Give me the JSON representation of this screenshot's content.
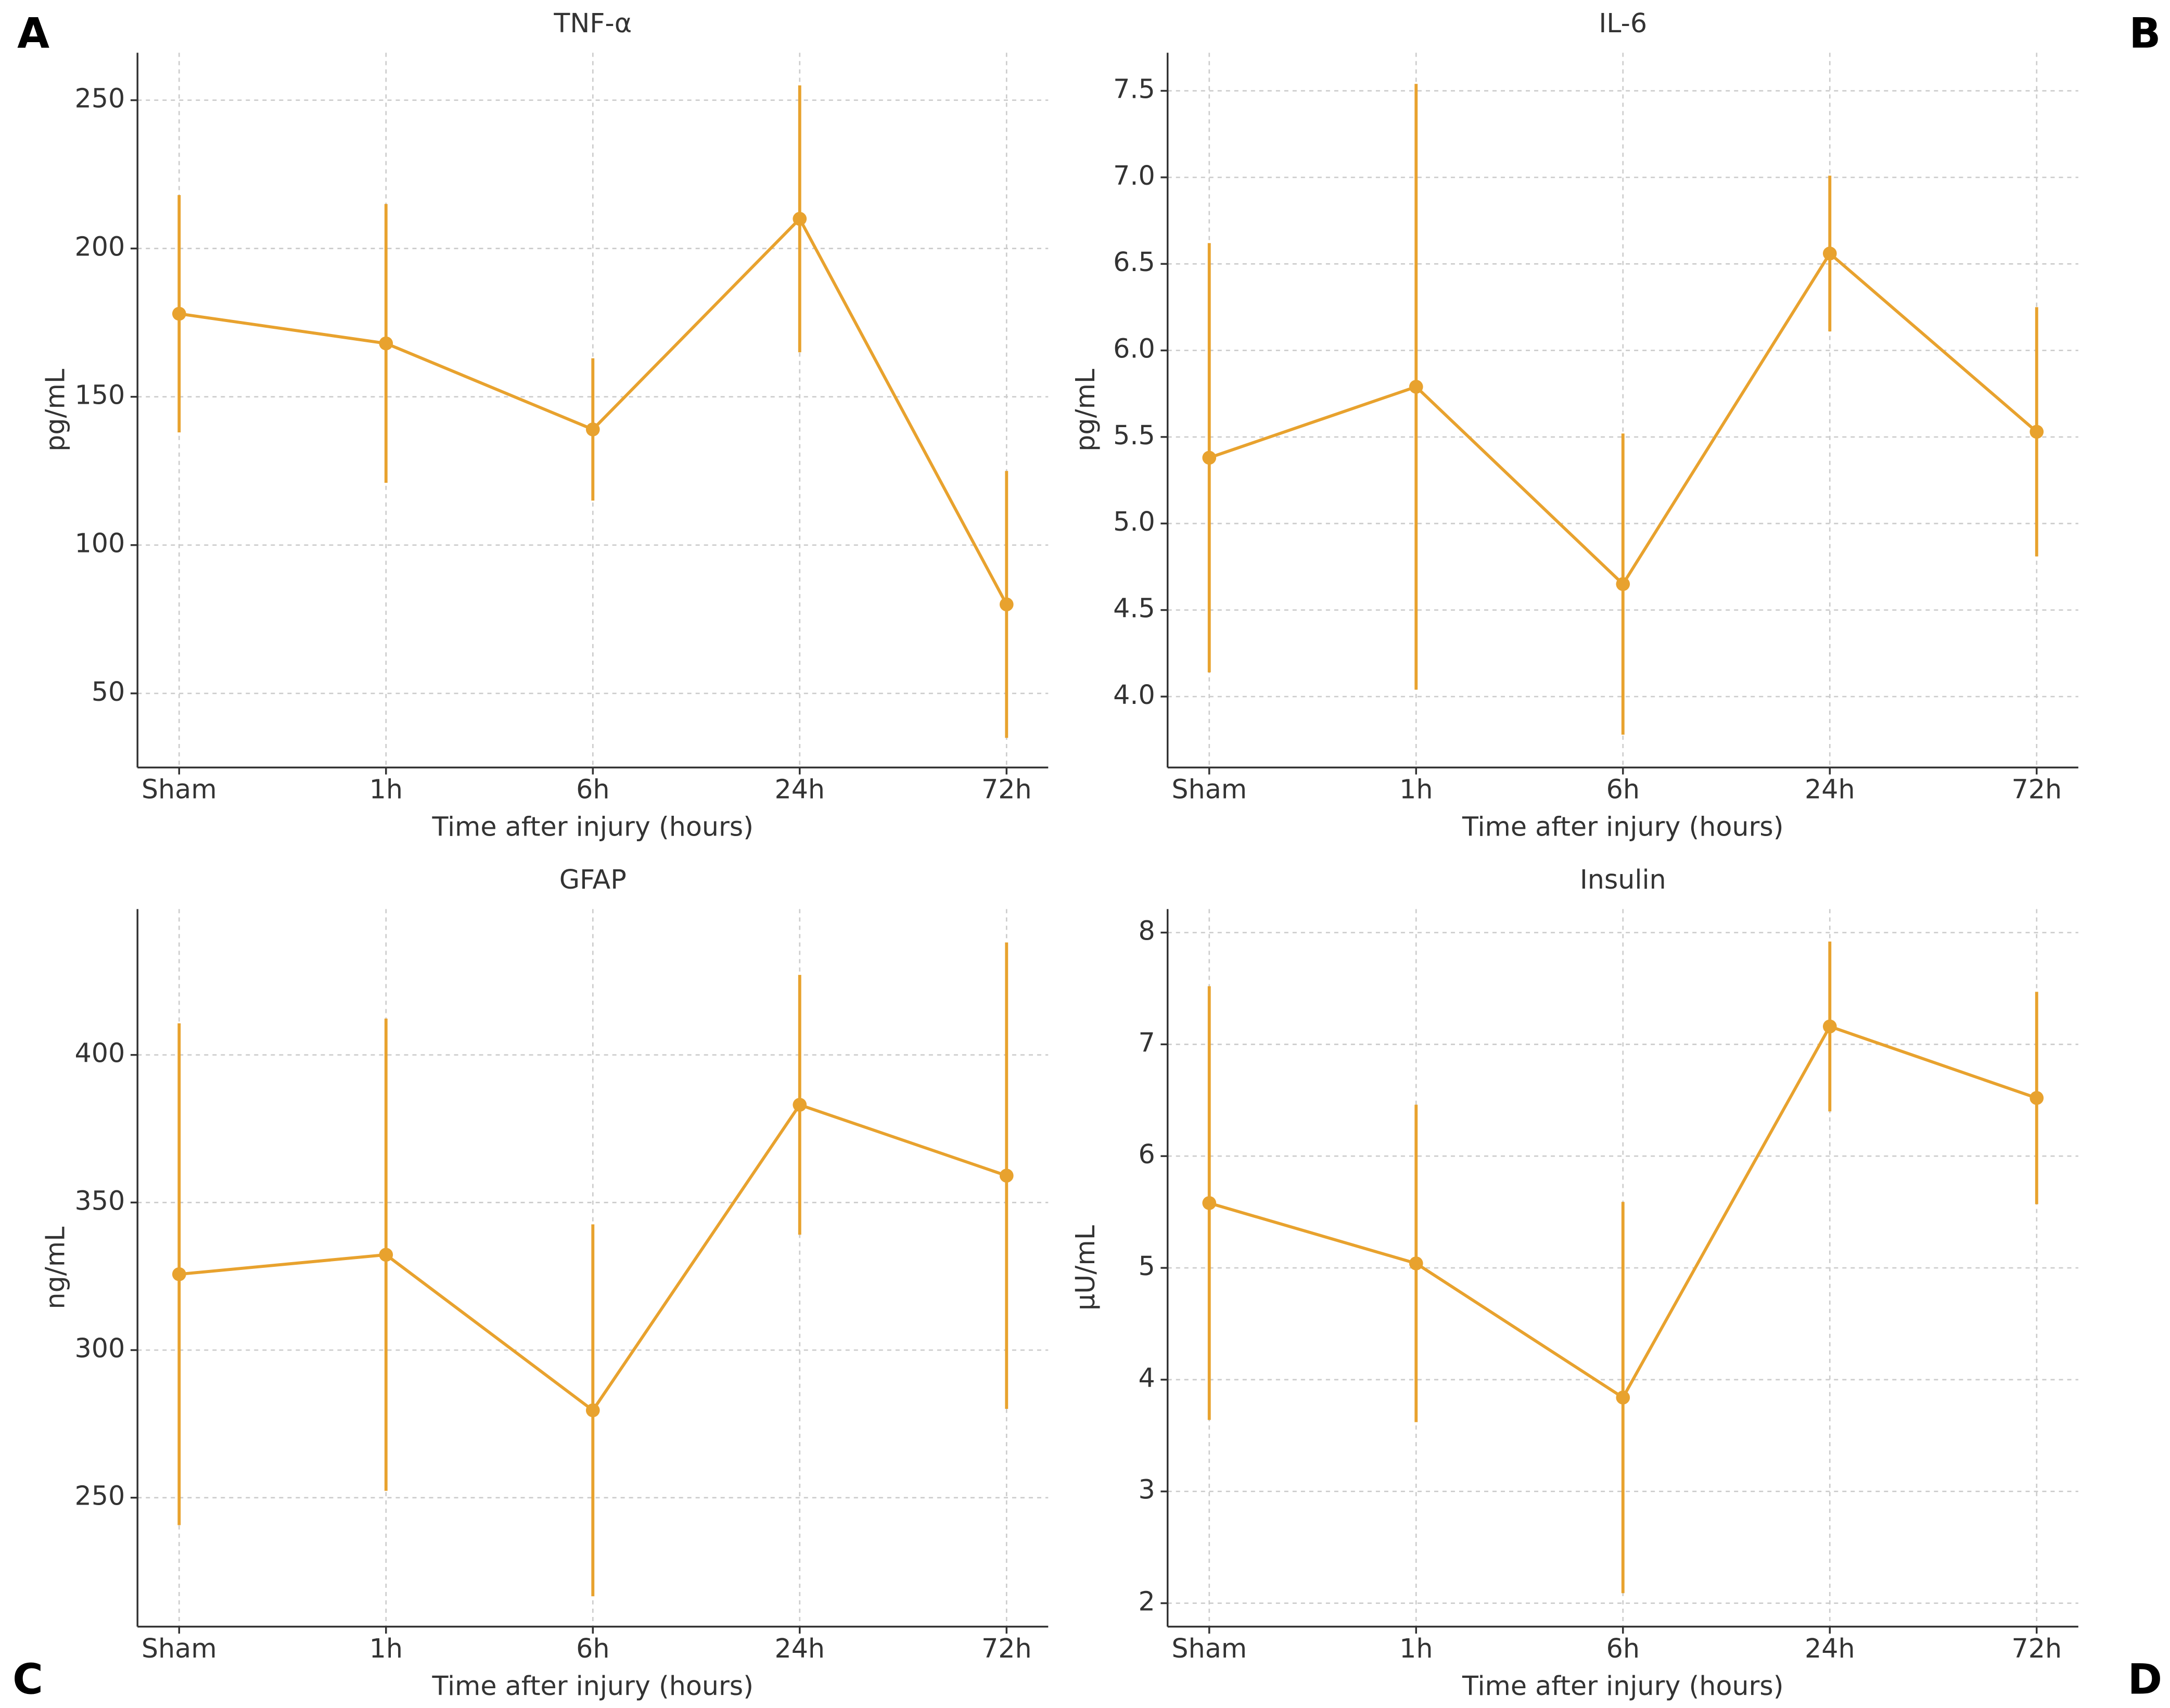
{
  "chart_data": [
    {
      "type": "line",
      "panel": "A",
      "title": "TNF-α",
      "xlabel": "Time after injury (hours)",
      "ylabel": "pg/mL",
      "categories": [
        "Sham",
        "1h",
        "6h",
        "24h",
        "72h"
      ],
      "values": [
        178,
        168,
        139,
        210,
        80
      ],
      "errors": [
        40,
        47,
        24,
        45,
        45
      ],
      "color": "#e8a22e",
      "ylim": [
        25,
        266
      ],
      "yticks": [
        50,
        100,
        150,
        200,
        250
      ],
      "grid": true
    },
    {
      "type": "line",
      "panel": "B",
      "title": "IL-6",
      "xlabel": "Time after injury (hours)",
      "ylabel": "pg/mL",
      "categories": [
        "Sham",
        "1h",
        "6h",
        "24h",
        "72h"
      ],
      "values": [
        5.38,
        5.79,
        4.65,
        6.56,
        5.53
      ],
      "errors": [
        1.24,
        1.75,
        0.87,
        0.45,
        0.72
      ],
      "color": "#e8a22e",
      "ylim": [
        3.59,
        7.72
      ],
      "yticks": [
        {
          "value": 4,
          "label": "4.0"
        },
        4.5,
        {
          "value": 5,
          "label": "5.0"
        },
        5.5,
        {
          "value": 6,
          "label": "6.0"
        },
        6.5,
        {
          "value": 7,
          "label": "7.0"
        },
        7.5
      ],
      "grid": true
    },
    {
      "type": "line",
      "panel": "C",
      "title": "GFAP",
      "xlabel": "Time after injury (hours)",
      "ylabel": "ng/mL",
      "categories": [
        "Sham",
        "1h",
        "6h",
        "24h",
        "72h"
      ],
      "values": [
        325.7,
        332.3,
        279.6,
        383.1,
        359.1
      ],
      "errors": [
        85,
        80,
        63,
        44,
        79
      ],
      "color": "#e8a22e",
      "ylim": [
        206.3,
        449.4
      ],
      "yticks": [
        250,
        300,
        350,
        400
      ],
      "grid": true
    },
    {
      "type": "line",
      "panel": "D",
      "title": "Insulin",
      "xlabel": "Time after injury (hours)",
      "ylabel": "μU/mL",
      "categories": [
        "Sham",
        "1h",
        "6h",
        "24h",
        "72h"
      ],
      "values": [
        5.58,
        5.04,
        3.84,
        7.16,
        6.52
      ],
      "errors": [
        1.94,
        1.42,
        1.75,
        0.76,
        0.95
      ],
      "color": "#e8a22e",
      "ylim": [
        1.79,
        8.21
      ],
      "yticks": [
        2,
        3,
        4,
        5,
        6,
        7,
        8
      ],
      "grid": true
    }
  ]
}
